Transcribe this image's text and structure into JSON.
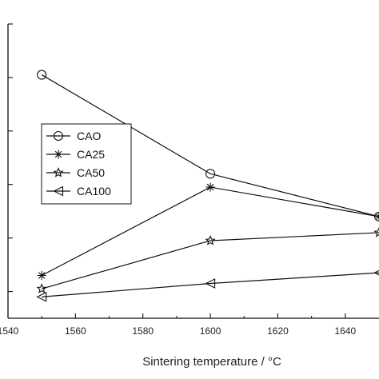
{
  "chart_data": {
    "type": "line",
    "title": "",
    "xlabel": "Sintering temperature / °C",
    "ylabel": "",
    "xlim": [
      1540,
      1650
    ],
    "ylim": [
      0,
      11
    ],
    "x_ticks": [
      1540,
      1560,
      1580,
      1600,
      1620,
      1640
    ],
    "y_ticks": [
      1,
      3,
      5,
      7,
      9,
      11
    ],
    "y_tick_labels_visible": false,
    "grid": false,
    "legend_position": "middle-left",
    "series": [
      {
        "name": "CAO",
        "marker": "circle",
        "x": [
          1550,
          1600,
          1650
        ],
        "y": [
          9.1,
          5.4,
          3.8
        ]
      },
      {
        "name": "CA25",
        "marker": "asterisk",
        "x": [
          1550,
          1600,
          1650
        ],
        "y": [
          1.6,
          4.9,
          3.8
        ]
      },
      {
        "name": "CA50",
        "marker": "star",
        "x": [
          1550,
          1600,
          1650
        ],
        "y": [
          1.1,
          2.9,
          3.2
        ]
      },
      {
        "name": "CA100",
        "marker": "triangle-left",
        "x": [
          1550,
          1600,
          1650
        ],
        "y": [
          0.8,
          1.3,
          1.7
        ]
      }
    ]
  }
}
